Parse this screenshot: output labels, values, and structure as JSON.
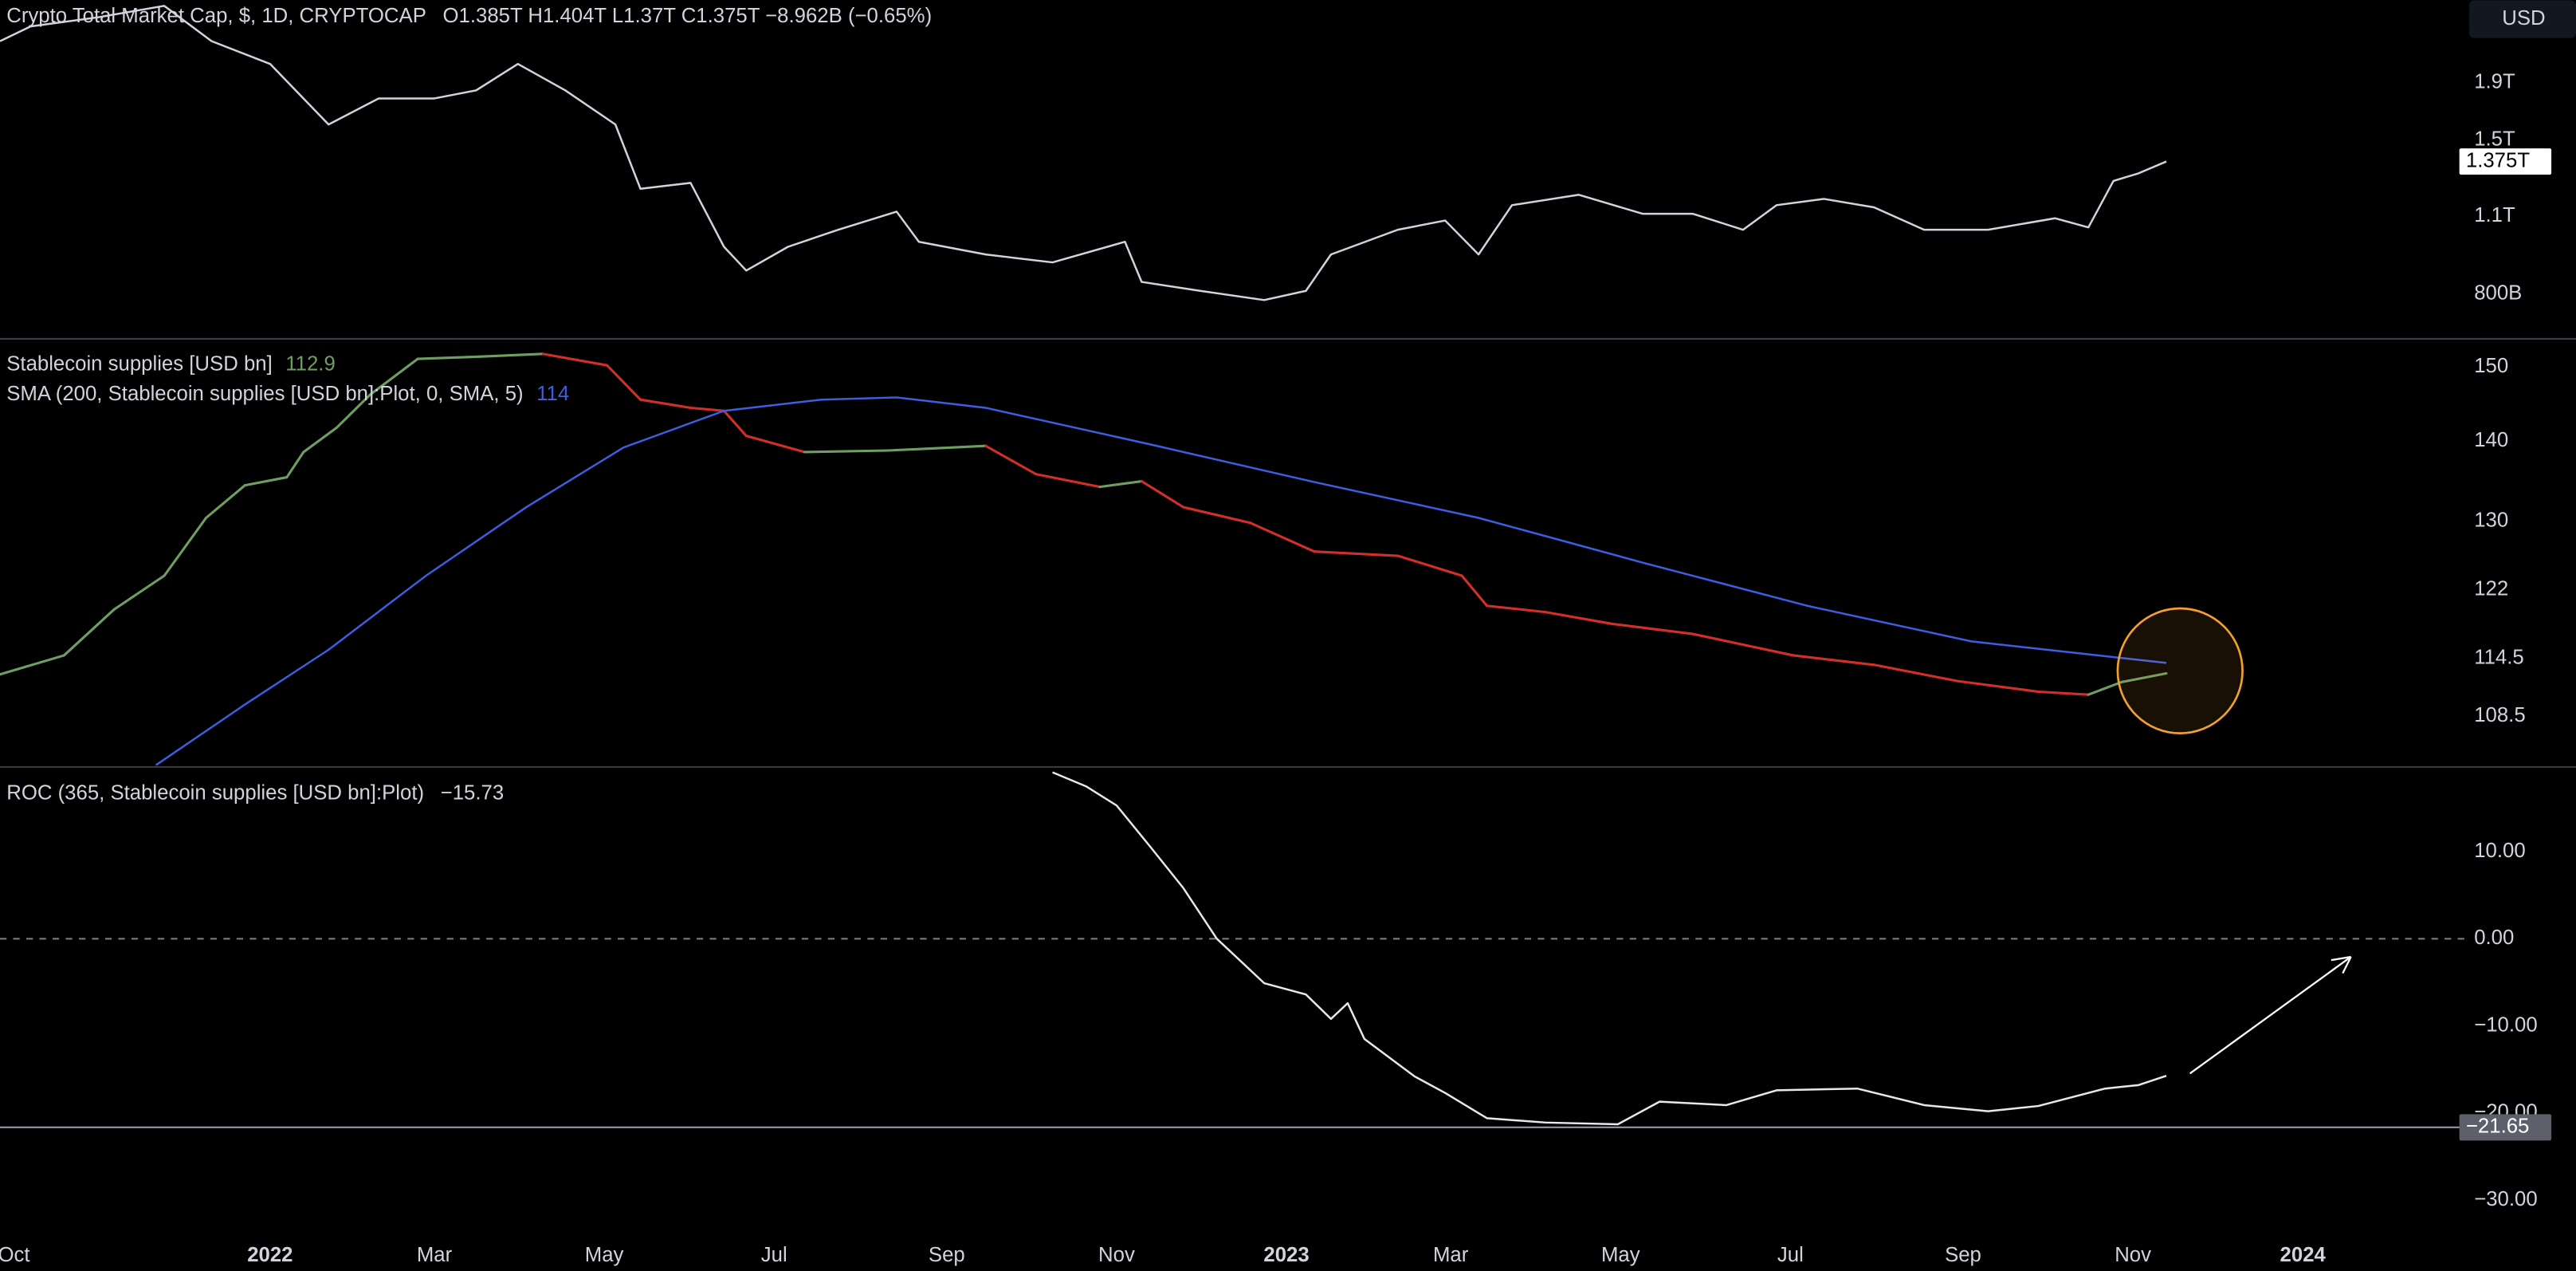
{
  "currency_button": "USD",
  "chart_data": [
    {
      "type": "line",
      "title": "Crypto Total Market Cap, $, 1D, CRYPTOCAP",
      "ohlc_text": "O1.385T  H1.404T  L1.37T  C1.375T  −8.962B (−0.65%)",
      "x": [
        -5,
        6,
        30,
        54,
        71,
        92,
        113,
        131,
        151,
        166,
        181,
        198,
        216,
        225,
        243,
        255,
        263,
        278,
        296,
        317,
        325,
        349,
        373,
        399,
        405,
        426,
        449,
        464,
        473,
        497,
        514,
        526,
        538,
        562,
        585,
        603,
        621,
        633,
        650,
        668,
        686,
        709,
        733,
        745,
        754,
        763,
        773
      ],
      "values": [
        2.25,
        2.39,
        2.48,
        2.6,
        2.25,
        2.05,
        1.6,
        1.78,
        1.78,
        1.84,
        2.05,
        1.84,
        1.6,
        1.23,
        1.26,
        0.97,
        0.88,
        0.97,
        1.04,
        1.12,
        0.99,
        0.94,
        0.91,
        0.99,
        0.84,
        0.81,
        0.78,
        0.81,
        0.94,
        1.04,
        1.08,
        0.94,
        1.15,
        1.2,
        1.11,
        1.11,
        1.04,
        1.15,
        1.18,
        1.14,
        1.04,
        1.04,
        1.09,
        1.05,
        1.27,
        1.31,
        1.375
      ],
      "color": "#d1d4dc",
      "last_value_label": "1.375T",
      "xlim": [
        -5,
        880
      ],
      "ylim": [
        0.67,
        2.66
      ],
      "log_y": true,
      "yticks": [
        {
          "value": 1.9,
          "label": "1.9T"
        },
        {
          "value": 1.5,
          "label": "1.5T"
        },
        {
          "value": 1.1,
          "label": "1.1T"
        },
        {
          "value": 0.8,
          "label": "800B"
        }
      ]
    },
    {
      "type": "line",
      "series": [
        {
          "name": "Stablecoin supplies [USD bn]",
          "last": 112.9,
          "up_color": "#6f9e63",
          "down_color": "#d32f2a",
          "x": [
            -5,
            18,
            36,
            54,
            69,
            83,
            98,
            104,
            116,
            128,
            145,
            166,
            190,
            213,
            225,
            243,
            255,
            263,
            284,
            314,
            349,
            367,
            390,
            405,
            420,
            444,
            467,
            497,
            520,
            529,
            550,
            574,
            603,
            639,
            668,
            698,
            727,
            745,
            757,
            773
          ],
          "values": [
            112.8,
            114.8,
            119.8,
            123.6,
            130.4,
            134.4,
            135.4,
            138.6,
            141.8,
            146.2,
            151.1,
            151.4,
            151.8,
            150.2,
            145.5,
            144.4,
            144.0,
            140.7,
            138.6,
            138.8,
            139.4,
            135.8,
            134.2,
            134.9,
            131.7,
            129.8,
            126.4,
            125.9,
            123.6,
            120.2,
            119.5,
            118.2,
            117.1,
            114.8,
            113.8,
            112.1,
            111.0,
            110.7,
            112.0,
            112.9
          ]
        },
        {
          "name": "SMA (200, Stablecoin supplies [USD bn]:Plot, 0, SMA, 5)",
          "last": 114,
          "color": "#3d5ee0",
          "x": [
            51,
            83,
            113,
            148,
            184,
            219,
            255,
            290,
            317,
            349,
            408,
            467,
            526,
            585,
            644,
            703,
            773
          ],
          "values": [
            103.7,
            109.7,
            115.4,
            123.6,
            131.7,
            139.2,
            144.0,
            145.5,
            145.8,
            144.4,
            139.6,
            134.8,
            130.4,
            125.1,
            120.2,
            116.3,
            114.0
          ]
        }
      ],
      "xlim": [
        -5,
        880
      ],
      "ylim": [
        103.6,
        153.7
      ],
      "log_y": true,
      "yticks": [
        150,
        140,
        130,
        122,
        114.5,
        108.5
      ]
    },
    {
      "type": "line",
      "title": "ROC (365, Stablecoin supplies [USD bn]:Plot)",
      "last_value": {
        "value": -15.73,
        "label": "−15.73"
      },
      "x": [
        373,
        385,
        396,
        408,
        420,
        432,
        449,
        464,
        473,
        479,
        485,
        503,
        514,
        529,
        550,
        576,
        591,
        615,
        633,
        662,
        686,
        709,
        727,
        751,
        763,
        773
      ],
      "values": [
        19.1,
        17.5,
        15.3,
        10.6,
        5.8,
        0,
        -5.1,
        -6.4,
        -9.2,
        -7.4,
        -11.5,
        -15.8,
        -17.7,
        -20.6,
        -21.1,
        -21.3,
        -18.7,
        -19.1,
        -17.4,
        -17.2,
        -19.1,
        -19.8,
        -19.2,
        -17.2,
        -16.8,
        -15.73
      ],
      "color": "#e8e8e8",
      "dashed_zero_line": true,
      "hline": {
        "value": -21.65,
        "label": "−21.65"
      },
      "xlim": [
        -5,
        880
      ],
      "ylim": [
        -33.77,
        19.62
      ],
      "yticks": [
        {
          "value": 10,
          "label": "10.00"
        },
        {
          "value": 0,
          "label": "0.00"
        },
        {
          "value": -10,
          "label": "−10.00"
        },
        {
          "value": -20,
          "label": "−20.00"
        },
        {
          "value": -30,
          "label": "−30.00"
        }
      ],
      "xticks": [
        {
          "value": 0,
          "label": "Oct"
        },
        {
          "value": 92,
          "label": "2022"
        },
        {
          "value": 151,
          "label": "Mar"
        },
        {
          "value": 212,
          "label": "May"
        },
        {
          "value": 273,
          "label": "Jul"
        },
        {
          "value": 335,
          "label": "Sep"
        },
        {
          "value": 396,
          "label": "Nov"
        },
        {
          "value": 457,
          "label": "2023"
        },
        {
          "value": 516,
          "label": "Mar"
        },
        {
          "value": 577,
          "label": "May"
        },
        {
          "value": 638,
          "label": "Jul"
        },
        {
          "value": 700,
          "label": "Sep"
        },
        {
          "value": 761,
          "label": "Nov"
        },
        {
          "value": 822,
          "label": "2024"
        }
      ]
    }
  ]
}
